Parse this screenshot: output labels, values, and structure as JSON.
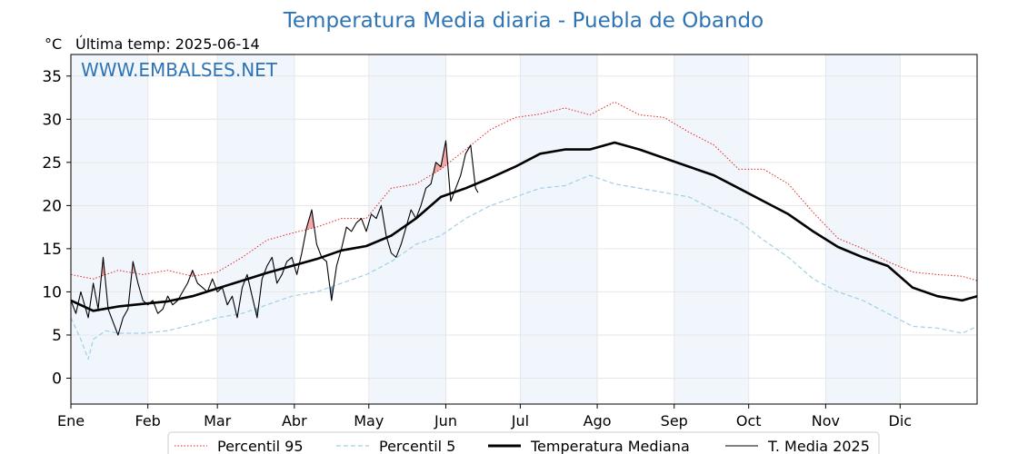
{
  "chart_data": {
    "type": "line",
    "title": "Temperatura Media diaria - Puebla de Obando",
    "subtitle": "Última temp: 2025-06-14",
    "ylabel": "°C",
    "watermark": "WWW.EMBALSES.NET",
    "ylim": [
      -3,
      37.5
    ],
    "xlim": [
      1,
      366
    ],
    "y_ticks": [
      0,
      5,
      10,
      15,
      20,
      25,
      30,
      35
    ],
    "x_ticks": [
      {
        "label": "Ene",
        "day": 1
      },
      {
        "label": "Feb",
        "day": 32
      },
      {
        "label": "Mar",
        "day": 60
      },
      {
        "label": "Abr",
        "day": 91
      },
      {
        "label": "May",
        "day": 121
      },
      {
        "label": "Jun",
        "day": 152
      },
      {
        "label": "Jul",
        "day": 182
      },
      {
        "label": "Ago",
        "day": 213
      },
      {
        "label": "Sep",
        "day": 244
      },
      {
        "label": "Oct",
        "day": 274
      },
      {
        "label": "Nov",
        "day": 305
      },
      {
        "label": "Dic",
        "day": 335
      }
    ],
    "grid": true,
    "legend_position": "bottom",
    "colors": {
      "p95": "#e8231f",
      "p5": "#9fd0e3",
      "median": "#000000",
      "current": "#000000",
      "above_fill": "#f2a6a6",
      "below_fill": "#7fa6c9",
      "title": "#2e74b5",
      "shade": "#f1f6fc"
    },
    "series": [
      {
        "name": "Percentil 95",
        "style": "dotted",
        "x": [
          1,
          10,
          20,
          30,
          40,
          50,
          60,
          70,
          80,
          90,
          100,
          110,
          120,
          130,
          140,
          150,
          160,
          170,
          180,
          190,
          200,
          210,
          220,
          230,
          240,
          250,
          260,
          270,
          280,
          290,
          300,
          310,
          320,
          330,
          340,
          350,
          360,
          366
        ],
        "values": [
          12,
          11.5,
          12.5,
          12,
          12.5,
          11.8,
          12.3,
          14,
          16,
          16.8,
          17.5,
          18.5,
          18.5,
          22,
          22.5,
          24.2,
          26.5,
          28.8,
          30.2,
          30.6,
          31.3,
          30.5,
          32,
          30.5,
          30.2,
          28.5,
          27,
          24.2,
          24.2,
          22.5,
          19.2,
          16.2,
          15,
          13.5,
          12.3,
          12,
          11.8,
          11.3
        ]
      },
      {
        "name": "Percentil 5",
        "style": "dashed",
        "x": [
          1,
          5,
          8,
          10,
          15,
          20,
          30,
          40,
          50,
          60,
          70,
          80,
          90,
          100,
          110,
          120,
          130,
          140,
          150,
          160,
          170,
          180,
          190,
          200,
          210,
          220,
          230,
          240,
          250,
          260,
          270,
          280,
          290,
          300,
          310,
          320,
          330,
          340,
          350,
          360,
          366
        ],
        "values": [
          7,
          4.5,
          2.2,
          4.5,
          5.5,
          5.2,
          5.2,
          5.5,
          6.2,
          7,
          7.5,
          8.5,
          9.5,
          10,
          11,
          12,
          13.5,
          15.5,
          16.5,
          18.5,
          20,
          21,
          22,
          22.3,
          23.5,
          22.5,
          22,
          21.5,
          21,
          19.5,
          18.2,
          16,
          14,
          11.5,
          10,
          9,
          7.5,
          6,
          5.8,
          5.2,
          6
        ]
      },
      {
        "name": "Temperatura Mediana",
        "style": "thick",
        "x": [
          1,
          10,
          20,
          30,
          40,
          50,
          60,
          70,
          80,
          90,
          100,
          110,
          120,
          130,
          140,
          150,
          160,
          170,
          180,
          190,
          200,
          210,
          220,
          230,
          240,
          250,
          260,
          270,
          280,
          290,
          300,
          310,
          320,
          330,
          340,
          350,
          360,
          366
        ],
        "values": [
          9,
          7.8,
          8.3,
          8.6,
          8.9,
          9.5,
          10.4,
          11.3,
          12.2,
          13,
          13.8,
          14.8,
          15.3,
          16.5,
          18.5,
          21,
          22,
          23.2,
          24.5,
          26,
          26.5,
          26.5,
          27.3,
          26.5,
          25.5,
          24.5,
          23.5,
          22,
          20.5,
          19,
          17,
          15.2,
          14,
          13,
          10.5,
          9.5,
          9,
          9.5
        ]
      },
      {
        "name": "T. Media 2025",
        "style": "thin",
        "x": [
          1,
          3,
          5,
          8,
          10,
          12,
          14,
          16,
          18,
          20,
          22,
          24,
          26,
          28,
          30,
          32,
          34,
          36,
          38,
          40,
          42,
          44,
          46,
          48,
          50,
          52,
          54,
          56,
          58,
          60,
          62,
          64,
          66,
          68,
          70,
          72,
          74,
          76,
          78,
          80,
          82,
          84,
          86,
          88,
          90,
          92,
          94,
          96,
          98,
          100,
          102,
          104,
          106,
          108,
          110,
          112,
          114,
          116,
          118,
          120,
          122,
          124,
          126,
          128,
          130,
          132,
          134,
          136,
          138,
          140,
          142,
          144,
          146,
          148,
          150,
          152,
          154,
          156,
          158,
          160,
          162,
          164,
          165
        ],
        "values": [
          9,
          7.5,
          10,
          7,
          11,
          8,
          14,
          8,
          6.5,
          5,
          7,
          8,
          13.5,
          11,
          9,
          8.5,
          9,
          7.5,
          8,
          9.5,
          8.5,
          9,
          10,
          11,
          12.5,
          11,
          10.5,
          10,
          11.5,
          10,
          10.5,
          8.5,
          9.5,
          7,
          10.5,
          12,
          9.5,
          7,
          11.5,
          13,
          14,
          11,
          12,
          13.5,
          14,
          12,
          14.5,
          17.5,
          19.5,
          15.5,
          14,
          13.5,
          9,
          13,
          15,
          17.5,
          17,
          18,
          18.5,
          17,
          19,
          18.5,
          20,
          16.5,
          14.5,
          14,
          15.5,
          17.5,
          19.5,
          18.5,
          20,
          22,
          22.5,
          25,
          24.5,
          27.5,
          20.5,
          22,
          23.5,
          26,
          27,
          22,
          21.5
        ]
      }
    ],
    "legend": [
      "Percentil 95",
      "Percentil 5",
      "Temperatura Mediana",
      "T. Media 2025"
    ]
  }
}
